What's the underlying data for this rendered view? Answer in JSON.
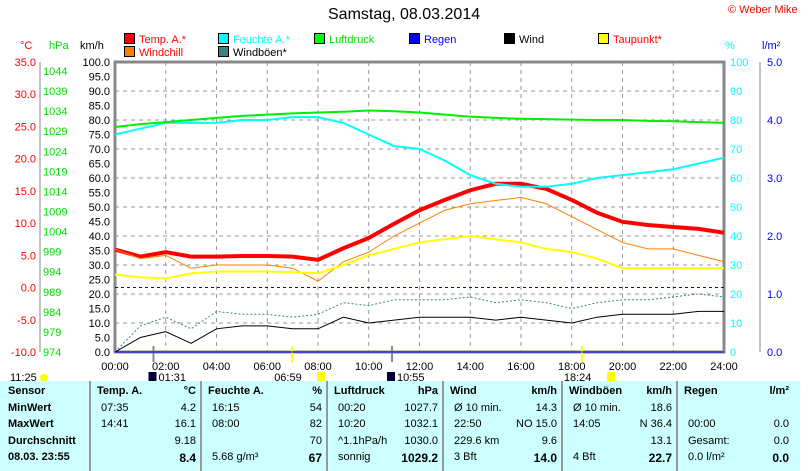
{
  "title": "Samstag, 08.03.2014",
  "copyright": "© Weber Mike",
  "axis_units": {
    "temp": "°C",
    "pressure": "hPa",
    "wind": "km/h",
    "humidity": "%",
    "rain": "l/m²"
  },
  "legend": [
    {
      "label": "Temp. A.*",
      "color": "#ff0000",
      "text_color": "#ff0000"
    },
    {
      "label": "Windchill",
      "color": "#ff8000",
      "text_color": "#ff0000"
    },
    {
      "label": "Feuchte A.*",
      "color": "#00ffff",
      "text_color": "#00ffff"
    },
    {
      "label": "Windböen*",
      "color": "#408080",
      "text_color": "#000000"
    },
    {
      "label": "Luftdruck",
      "color": "#00ff00",
      "text_color": "#00dd00"
    },
    {
      "label": "Regen",
      "color": "#0000ff",
      "text_color": "#0000ff"
    },
    {
      "label": "Wind",
      "color": "#000000",
      "text_color": "#000000"
    },
    {
      "label": "Taupunkt*",
      "color": "#ffff00",
      "text_color": "#ff0000"
    }
  ],
  "chart_data": {
    "type": "line",
    "title": "Samstag, 08.03.2014",
    "x": [
      0,
      1,
      2,
      3,
      4,
      5,
      6,
      7,
      8,
      9,
      10,
      11,
      12,
      13,
      14,
      15,
      16,
      17,
      18,
      19,
      20,
      21,
      22,
      23,
      24
    ],
    "x_tick_labels": [
      "00:00",
      "02:00",
      "04:00",
      "06:00",
      "08:00",
      "10:00",
      "12:00",
      "14:00",
      "16:00",
      "18:00",
      "20:00",
      "22:00",
      "24:00"
    ],
    "axes": {
      "temp": {
        "range": [
          -10,
          35
        ],
        "ticks": [
          "35.0",
          "30.0",
          "25.0",
          "20.0",
          "15.0",
          "10.0",
          "5.0",
          "0.0",
          "-5.0",
          "-10.0"
        ]
      },
      "pressure": {
        "range": [
          974,
          1044
        ],
        "ticks": [
          "1044",
          "1039",
          "1034",
          "1029",
          "1024",
          "1019",
          "1014",
          "1009",
          "1004",
          "999",
          "994",
          "989",
          "984",
          "979",
          "974"
        ]
      },
      "wind": {
        "range": [
          0,
          100
        ],
        "ticks": [
          "100.0",
          "95.0",
          "90.0",
          "85.0",
          "80.0",
          "75.0",
          "70.0",
          "65.0",
          "60.0",
          "55.0",
          "50.0",
          "45.0",
          "40.0",
          "35.0",
          "30.0",
          "25.0",
          "20.0",
          "15.0",
          "10.0",
          "5.0",
          "0.0"
        ]
      },
      "humidity": {
        "range": [
          0,
          100
        ],
        "ticks": [
          "100",
          "90",
          "80",
          "70",
          "60",
          "50",
          "40",
          "30",
          "20",
          "10",
          "0"
        ]
      },
      "rain": {
        "range": [
          0,
          5
        ],
        "ticks": [
          "5.0",
          "4.0",
          "3.0",
          "2.0",
          "1.0",
          "0.0"
        ]
      }
    },
    "series": [
      {
        "name": "Temp. A.*",
        "axis": "temp",
        "color": "#ff0000",
        "width": 4,
        "values": [
          5.9,
          4.8,
          5.5,
          4.8,
          4.8,
          4.9,
          4.9,
          4.8,
          4.3,
          6.1,
          7.7,
          9.9,
          12,
          13.6,
          15.1,
          16.1,
          16.1,
          15.3,
          13.6,
          11.6,
          10.2,
          9.7,
          9.4,
          9.1,
          8.5
        ]
      },
      {
        "name": "Windchill",
        "axis": "temp",
        "color": "#ff8000",
        "width": 1,
        "values": [
          5.9,
          4.5,
          5,
          3,
          3.5,
          3.5,
          3.5,
          3,
          1,
          4,
          5.5,
          8,
          10,
          12,
          13,
          13.5,
          14,
          13,
          11,
          9,
          7,
          6,
          6,
          5,
          4
        ]
      },
      {
        "name": "Taupunkt*",
        "axis": "temp",
        "color": "#ffff00",
        "width": 2,
        "values": [
          2,
          1.6,
          1.4,
          2.2,
          2.5,
          2.5,
          2.5,
          2.4,
          2.2,
          3.5,
          5,
          6,
          7,
          7.5,
          8,
          7.5,
          7,
          6,
          5.5,
          4.5,
          3,
          3,
          3,
          3,
          3
        ]
      },
      {
        "name": "Feuchte A.*",
        "axis": "humidity",
        "color": "#00ffff",
        "width": 2,
        "values": [
          75,
          77,
          79,
          79,
          79,
          80,
          80,
          81,
          81,
          79,
          75,
          71,
          70,
          66,
          61,
          58,
          57,
          57,
          58,
          60,
          61,
          62,
          63,
          65,
          67
        ]
      },
      {
        "name": "Luftdruck",
        "axis": "pressure",
        "color": "#00ee00",
        "width": 2,
        "values": [
          1028.3,
          1029,
          1029.5,
          1030,
          1030.5,
          1031,
          1031.3,
          1031.6,
          1031.8,
          1032,
          1032.3,
          1032.1,
          1031.8,
          1031.3,
          1030.8,
          1030.5,
          1030.3,
          1030.2,
          1030.1,
          1030,
          1030,
          1029.8,
          1029.7,
          1029.5,
          1029.3
        ]
      },
      {
        "name": "Windböen*",
        "axis": "wind",
        "color": "#408080",
        "width": 1,
        "dash": "2,2",
        "values": [
          0,
          9,
          12,
          8,
          14,
          13,
          13,
          12,
          13,
          17,
          16,
          18,
          18,
          18,
          19,
          17,
          18,
          17,
          15,
          17,
          18,
          18,
          19,
          20,
          19
        ]
      },
      {
        "name": "Wind",
        "axis": "wind",
        "color": "#000000",
        "width": 1,
        "values": [
          0,
          5,
          7,
          3,
          8,
          9,
          9,
          8,
          8,
          12,
          10,
          11,
          12,
          12,
          12,
          11,
          12,
          11,
          10,
          12,
          13,
          13,
          13,
          14,
          14
        ]
      },
      {
        "name": "Regen",
        "axis": "rain",
        "color": "#0000ff",
        "width": 1,
        "values": [
          0,
          0,
          0,
          0,
          0,
          0,
          0,
          0,
          0,
          0,
          0,
          0,
          0,
          0,
          0,
          0,
          0,
          0,
          0,
          0,
          0,
          0,
          0,
          0,
          0
        ]
      }
    ],
    "reference_line": {
      "axis": "temp",
      "value": 0,
      "color": "#0000ff",
      "style": "dashed"
    },
    "events": [
      {
        "label": "01:31",
        "hour": 1.517,
        "type": "moonset",
        "color": "#888888"
      },
      {
        "label": "06:59",
        "hour": 6.983,
        "type": "sunrise",
        "color": "#ffff00"
      },
      {
        "label": "10:55",
        "hour": 10.917,
        "type": "moonrise",
        "color": "#888888"
      },
      {
        "label": "18:24",
        "hour": 18.4,
        "type": "sunset",
        "color": "#ffff00"
      }
    ],
    "moon_label": "11:25"
  },
  "table": {
    "rows": [
      "Sensor",
      "MinWert",
      "MaxWert",
      "Durchschnitt",
      "08.03. 23:55"
    ],
    "columns": [
      {
        "head": "Temp. A.",
        "unit": "°C",
        "cells": [
          [
            "07:35",
            "4.2"
          ],
          [
            "14:41",
            "16.1"
          ],
          [
            "",
            "9.18"
          ],
          [
            "",
            "8.4"
          ]
        ]
      },
      {
        "head": "Feuchte A.",
        "unit": "%",
        "cells": [
          [
            "16:15",
            "54"
          ],
          [
            "08:00",
            "82"
          ],
          [
            "",
            "70"
          ],
          [
            "5.68 g/m³",
            "67"
          ]
        ]
      },
      {
        "head": "Luftdruck",
        "unit": "hPa",
        "cells": [
          [
            "00:20",
            "1027.7"
          ],
          [
            "10:20",
            "1032.1"
          ],
          [
            "^1.1hPa/h",
            "1030.0"
          ],
          [
            "sonnig",
            "1029.2"
          ]
        ]
      },
      {
        "head": "Wind",
        "unit": "km/h",
        "cells": [
          [
            "Ø 10 min.",
            "14.3"
          ],
          [
            "22:50",
            "NO 15.0"
          ],
          [
            "229.6 km",
            "9.6"
          ],
          [
            "3 Bft",
            "14.0"
          ]
        ]
      },
      {
        "head": "Windböen",
        "unit": "km/h",
        "cells": [
          [
            "Ø 10 min.",
            "18.6"
          ],
          [
            "14:05",
            "N 36.4"
          ],
          [
            "",
            "13.1"
          ],
          [
            "4 Bft",
            "22.7"
          ]
        ]
      },
      {
        "head": "Regen",
        "unit": "l/m²",
        "cells": [
          [
            "",
            ""
          ],
          [
            "00:00",
            "0.0"
          ],
          [
            "Gesamt:",
            "0.0"
          ],
          [
            "0.0 l/m²",
            "0.0"
          ]
        ]
      }
    ]
  }
}
